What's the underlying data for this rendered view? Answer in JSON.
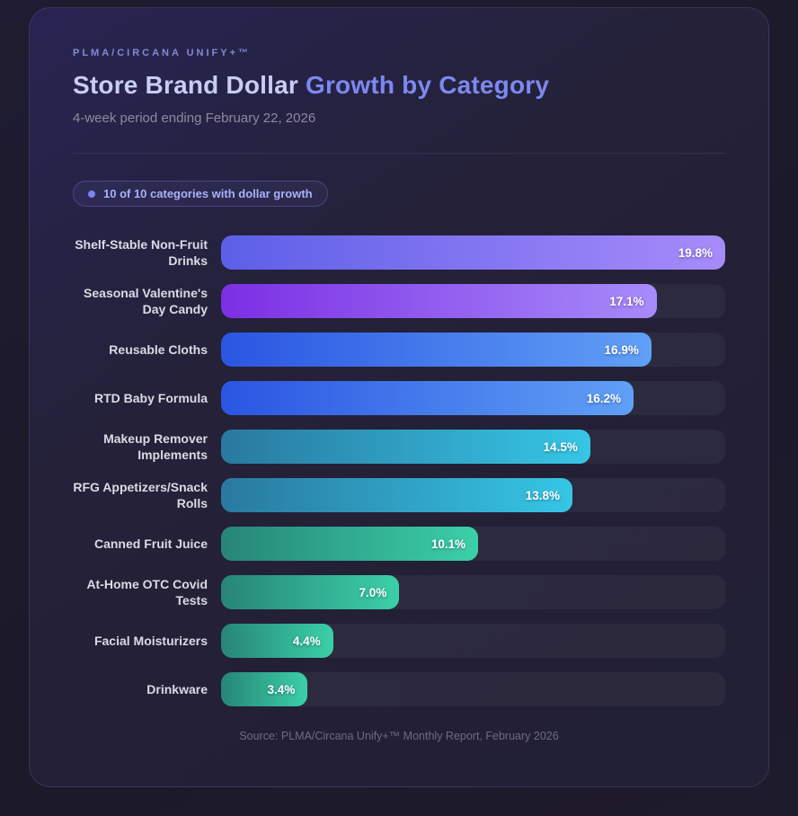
{
  "header": {
    "eyebrow": "PLMA/CIRCANA UNIFY+™",
    "title_primary": "Store Brand Dollar",
    "title_accent": "Growth by Category",
    "subtitle": "4-week period ending February 22, 2026"
  },
  "badge": {
    "label": "10 of 10 categories with dollar growth",
    "dot_color": "#7b83f0"
  },
  "footer": {
    "source": "Source: PLMA/Circana Unify+™ Monthly Report, February 2026"
  },
  "colors": {
    "page_background": "#1d1a2d",
    "card_background": "#242138",
    "title_accent": "#7d88f0",
    "bar_track": "#2c2941",
    "value_text": "#ffffff"
  },
  "chart_data": {
    "type": "bar",
    "orientation": "horizontal",
    "title": "Store Brand Dollar Growth by Category",
    "subtitle": "4-week period ending February 22, 2026",
    "xlabel": "",
    "ylabel": "",
    "max": 19.8,
    "xlim": [
      0,
      19.8
    ],
    "grid": false,
    "legend": false,
    "categories": [
      "Shelf-Stable Non-Fruit Drinks",
      "Seasonal Valentine's Day Candy",
      "Reusable Cloths",
      "RTD Baby Formula",
      "Makeup Remover Implements",
      "RFG Appetizers/Snack Rolls",
      "Canned Fruit Juice",
      "At-Home OTC Covid Tests",
      "Facial Moisturizers",
      "Drinkware"
    ],
    "values": [
      19.8,
      17.1,
      16.9,
      16.2,
      14.5,
      13.8,
      10.1,
      7.0,
      4.4,
      3.4
    ],
    "value_labels": [
      "19.8%",
      "17.1%",
      "16.9%",
      "16.2%",
      "14.5%",
      "13.8%",
      "10.1%",
      "7.0%",
      "4.4%",
      "3.4%"
    ],
    "gradients": [
      [
        "#5d5fe8",
        "#a78bfa"
      ],
      [
        "#7c2fe4",
        "#a78bfa"
      ],
      [
        "#2b55e2",
        "#60a0f6"
      ],
      [
        "#2b55e2",
        "#60a0f6"
      ],
      [
        "#29799f",
        "#36c6e6"
      ],
      [
        "#29799f",
        "#36c6e6"
      ],
      [
        "#278577",
        "#3bd0a8"
      ],
      [
        "#278577",
        "#3bd0a8"
      ],
      [
        "#278577",
        "#3bd0a8"
      ],
      [
        "#278577",
        "#3bd0a8"
      ]
    ]
  }
}
